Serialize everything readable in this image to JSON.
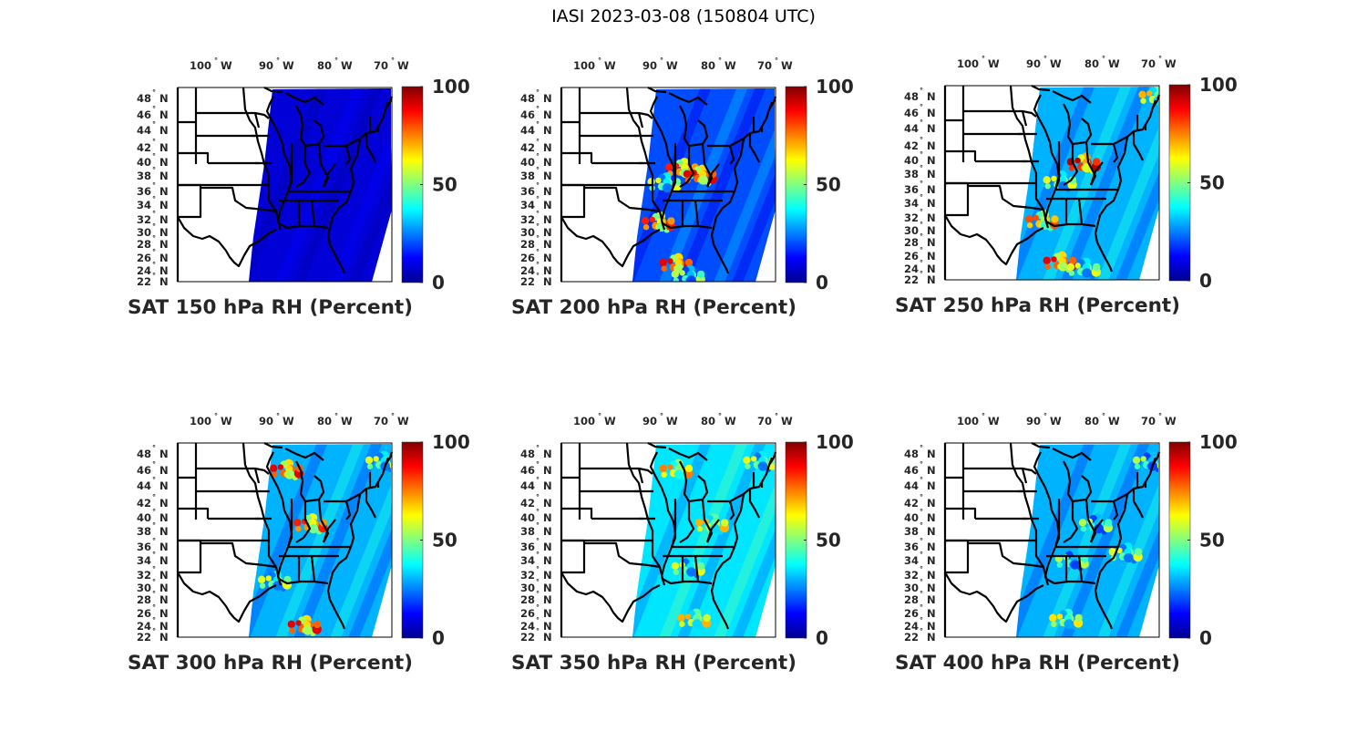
{
  "title": "IASI 2023-03-08 (150804 UTC)",
  "colormap": [
    "#00008f",
    "#0000ff",
    "#0080ff",
    "#00ffff",
    "#80ff80",
    "#ffff00",
    "#ff8000",
    "#ff0000",
    "#800000"
  ],
  "chart_data": [
    {
      "type": "heatmap",
      "title": "SAT 150 hPa RH (Percent)",
      "pressure_hPa": 150,
      "variable": "RH",
      "units": "Percent",
      "xticks": [
        "100° W",
        "90° W",
        "80° W",
        "70° W"
      ],
      "yticks": [
        "48° N",
        "46° N",
        "44° N",
        "42° N",
        "40° N",
        "38° N",
        "36° N",
        "34° N",
        "32° N",
        "30° N",
        "28° N",
        "26° N",
        "24° N",
        "22° N"
      ],
      "colorbar": {
        "ticks": [
          "0",
          "50",
          "100"
        ],
        "range": [
          0,
          100
        ]
      },
      "typical_value": 8,
      "moist_regions": []
    },
    {
      "type": "heatmap",
      "title": "SAT 200 hPa RH (Percent)",
      "pressure_hPa": 200,
      "variable": "RH",
      "units": "Percent",
      "xticks": [
        "100° W",
        "90° W",
        "80° W",
        "70° W"
      ],
      "yticks": [
        "48° N",
        "46° N",
        "44° N",
        "42° N",
        "40° N",
        "38° N",
        "36° N",
        "34° N",
        "32° N",
        "30° N",
        "28° N",
        "26° N",
        "24° N",
        "22° N"
      ],
      "colorbar": {
        "ticks": [
          "0",
          "50",
          "100"
        ],
        "range": [
          0,
          100
        ]
      },
      "typical_value": 20,
      "moist_regions": [
        {
          "lon": -87,
          "lat": 39,
          "value": 85
        },
        {
          "lon": -84,
          "lat": 38,
          "value": 90
        },
        {
          "lon": -90,
          "lat": 37,
          "value": 60
        },
        {
          "lon": -91,
          "lat": 31.5,
          "value": 85
        },
        {
          "lon": -88,
          "lat": 25,
          "value": 90
        },
        {
          "lon": -86,
          "lat": 23,
          "value": 55
        }
      ]
    },
    {
      "type": "heatmap",
      "title": "SAT 250 hPa RH (Percent)",
      "pressure_hPa": 250,
      "variable": "RH",
      "units": "Percent",
      "xticks": [
        "100° W",
        "90° W",
        "80° W",
        "70° W"
      ],
      "yticks": [
        "48° N",
        "46° N",
        "44° N",
        "42° N",
        "40° N",
        "38° N",
        "36° N",
        "34° N",
        "32° N",
        "30° N",
        "28° N",
        "26° N",
        "24° N",
        "22° N"
      ],
      "colorbar": {
        "ticks": [
          "0",
          "50",
          "100"
        ],
        "range": [
          0,
          100
        ]
      },
      "typical_value": 30,
      "moist_regions": [
        {
          "lon": -84,
          "lat": 39.5,
          "value": 95
        },
        {
          "lon": -88,
          "lat": 37,
          "value": 60
        },
        {
          "lon": -72,
          "lat": 48,
          "value": 70
        },
        {
          "lon": -88,
          "lat": 25,
          "value": 90
        },
        {
          "lon": -91,
          "lat": 31.5,
          "value": 80
        },
        {
          "lon": -84,
          "lat": 24,
          "value": 60
        }
      ]
    },
    {
      "type": "heatmap",
      "title": "SAT 300 hPa RH (Percent)",
      "pressure_hPa": 300,
      "variable": "RH",
      "units": "Percent",
      "xticks": [
        "100° W",
        "90° W",
        "80° W",
        "70° W"
      ],
      "yticks": [
        "48° N",
        "46° N",
        "44° N",
        "42° N",
        "40° N",
        "38° N",
        "36° N",
        "34° N",
        "32° N",
        "30° N",
        "28° N",
        "26° N",
        "24° N",
        "22° N"
      ],
      "colorbar": {
        "ticks": [
          "0",
          "50",
          "100"
        ],
        "range": [
          0,
          100
        ]
      },
      "typical_value": 30,
      "moist_regions": [
        {
          "lon": -89,
          "lat": 46,
          "value": 90
        },
        {
          "lon": -85,
          "lat": 39,
          "value": 85
        },
        {
          "lon": -73,
          "lat": 47,
          "value": 60
        },
        {
          "lon": -86,
          "lat": 24,
          "value": 90
        },
        {
          "lon": -91,
          "lat": 31,
          "value": 60
        }
      ]
    },
    {
      "type": "heatmap",
      "title": "SAT 350 hPa RH (Percent)",
      "pressure_hPa": 350,
      "variable": "RH",
      "units": "Percent",
      "xticks": [
        "100° W",
        "90° W",
        "80° W",
        "70° W"
      ],
      "yticks": [
        "48° N",
        "46° N",
        "44° N",
        "42° N",
        "40° N",
        "38° N",
        "36° N",
        "34° N",
        "32° N",
        "30° N",
        "28° N",
        "26° N",
        "24° N",
        "22° N"
      ],
      "colorbar": {
        "ticks": [
          "0",
          "50",
          "100"
        ],
        "range": [
          0,
          100
        ]
      },
      "typical_value": 35,
      "moist_regions": [
        {
          "lon": -88,
          "lat": 46,
          "value": 75
        },
        {
          "lon": -82,
          "lat": 39,
          "value": 70
        },
        {
          "lon": -74,
          "lat": 47,
          "value": 60
        },
        {
          "lon": -85,
          "lat": 25,
          "value": 70
        },
        {
          "lon": -86,
          "lat": 33,
          "value": 60
        }
      ]
    },
    {
      "type": "heatmap",
      "title": "SAT 400 hPa RH (Percent)",
      "pressure_hPa": 400,
      "variable": "RH",
      "units": "Percent",
      "xticks": [
        "100° W",
        "90° W",
        "80° W",
        "70° W"
      ],
      "yticks": [
        "48° N",
        "46° N",
        "44° N",
        "42° N",
        "40° N",
        "38° N",
        "36° N",
        "34° N",
        "32° N",
        "30° N",
        "28° N",
        "26° N",
        "24° N",
        "22° N"
      ],
      "colorbar": {
        "ticks": [
          "0",
          "50",
          "100"
        ],
        "range": [
          0,
          100
        ]
      },
      "typical_value": 30,
      "moist_regions": [
        {
          "lon": -82,
          "lat": 39,
          "value": 55
        },
        {
          "lon": -86,
          "lat": 34,
          "value": 55
        },
        {
          "lon": -73,
          "lat": 47,
          "value": 55
        },
        {
          "lon": -77,
          "lat": 35,
          "value": 60
        },
        {
          "lon": -87,
          "lat": 25,
          "value": 65
        }
      ]
    }
  ]
}
